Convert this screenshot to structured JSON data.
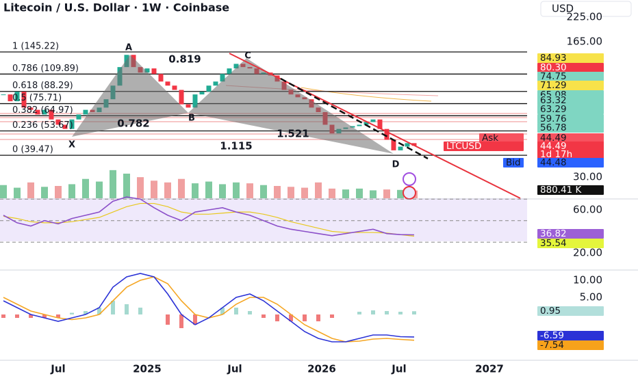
{
  "header": {
    "title": "Litecoin / U.S. Dollar · 1W · Coinbase",
    "currency": "USD"
  },
  "price_pane": {
    "scale": "log",
    "yticks": [
      {
        "value": 225,
        "label": "225.00"
      },
      {
        "value": 165,
        "label": "165.00"
      },
      {
        "value": 30,
        "label": "30.00"
      }
    ],
    "closes": [
      85,
      78,
      88,
      72,
      70,
      66,
      70,
      62,
      58,
      55,
      62,
      66,
      70,
      68,
      72,
      80,
      95,
      120,
      140,
      120,
      112,
      118,
      110,
      100,
      95,
      90,
      75,
      72,
      85,
      88,
      95,
      100,
      110,
      118,
      125,
      120,
      118,
      110,
      112,
      108,
      100,
      90,
      85,
      82,
      80,
      72,
      68,
      58,
      52,
      55,
      56,
      57,
      58,
      60,
      62,
      55,
      48,
      42,
      44,
      46,
      44.49
    ],
    "fib_levels": [
      {
        "label": "1 (145.22)",
        "value": 145.22
      },
      {
        "label": "0.786 (109.89)",
        "value": 109.89
      },
      {
        "label": "0.618 (88.29)",
        "value": 88.29
      },
      {
        "label": "0.5 (75.71)",
        "value": 75.71
      },
      {
        "label": "0.382 (64.97)",
        "value": 64.97
      },
      {
        "label": "0.236 (53.67)",
        "value": 53.67
      },
      {
        "label": "0 (39.47)",
        "value": 39.47
      }
    ],
    "pattern": {
      "points": [
        "X",
        "A",
        "B",
        "C",
        "D"
      ],
      "ratios": [
        0.819,
        0.782,
        1.521,
        1.115
      ]
    },
    "tags": [
      {
        "value": 84.93,
        "color": "#f7e24a"
      },
      {
        "value": 80.3,
        "label": "80.30",
        "color": "#f23645"
      },
      {
        "value": 74.75,
        "color": "#7fd6c2"
      },
      {
        "value": 71.29,
        "color": "#f7e24a"
      },
      {
        "value": 65.08,
        "color": "#7fd6c2"
      },
      {
        "value": 63.32,
        "color": "#7fd6c2"
      },
      {
        "value": 63.29,
        "color": "#7fd6c2"
      },
      {
        "value": 59.76,
        "color": "#7fd6c2"
      },
      {
        "value": 56.78,
        "color": "#7fd6c2"
      }
    ],
    "quote": {
      "ask_label": "Ask",
      "ask": 44.49,
      "symbol": "LTCUSD",
      "last": 44.49,
      "countdown": "1d 17h",
      "bid_label": "Bid",
      "bid": 44.48
    }
  },
  "volume_pane": {
    "values": [
      1500,
      1200,
      1800,
      1300,
      1400,
      1600,
      2200,
      1900,
      3200,
      2800,
      2400,
      2000,
      1800,
      2200,
      1700,
      1900,
      1600,
      1800,
      1700,
      1500,
      1400,
      1300,
      1200,
      1800,
      1100,
      1000,
      1100,
      900,
      1000,
      950,
      880.41
    ],
    "tag": {
      "value": 880.41,
      "label": "880.41 K"
    }
  },
  "rsi_pane": {
    "yticks": [
      {
        "value": 60,
        "label": "60.00"
      },
      {
        "value": 20,
        "label": "20.00"
      }
    ],
    "bands": [
      70,
      50,
      30
    ],
    "rsi": [
      55,
      48,
      45,
      50,
      47,
      52,
      55,
      58,
      68,
      72,
      70,
      62,
      55,
      50,
      58,
      60,
      62,
      58,
      55,
      50,
      45,
      42,
      40,
      38,
      36,
      38,
      40,
      42,
      38,
      37,
      36.82
    ],
    "rsi_ma": [
      54,
      52,
      49,
      48,
      48,
      49,
      51,
      53,
      58,
      63,
      66,
      66,
      63,
      58,
      56,
      56,
      57,
      58,
      58,
      56,
      53,
      49,
      46,
      43,
      40,
      39,
      39,
      39,
      38.5,
      37,
      35.54
    ],
    "tags": [
      {
        "value": 36.82,
        "color": "#9c5fd6"
      },
      {
        "value": 35.54,
        "color": "#e4f53c"
      }
    ]
  },
  "macd_pane": {
    "yticks": [
      {
        "value": 10,
        "label": "10.00"
      },
      {
        "value": 5,
        "label": "5.00"
      }
    ],
    "histogram": [
      -1,
      -1,
      -1,
      -1,
      -1,
      0.5,
      1,
      2,
      4,
      3,
      2,
      0,
      -3,
      -4,
      -3,
      0,
      2,
      2,
      1,
      -1,
      -2,
      -2,
      -2,
      -2,
      -1,
      0,
      0.8,
      1.2,
      1,
      0.8,
      0.95
    ],
    "macd": [
      4,
      2,
      0,
      -1,
      -2,
      -1,
      0,
      2,
      8,
      11,
      12,
      11,
      6,
      0,
      -3,
      -1,
      2,
      5,
      6,
      4,
      1,
      -2,
      -5,
      -7,
      -8,
      -8,
      -7,
      -6,
      -6,
      -6.5,
      -6.59
    ],
    "signal": [
      5,
      3,
      1,
      0,
      -1,
      -1.5,
      -1,
      0,
      4,
      8,
      10,
      11,
      9,
      4,
      0,
      -1,
      0,
      3,
      5,
      5,
      3,
      0,
      -3,
      -5,
      -7,
      -8,
      -7.8,
      -7.2,
      -7,
      -7.3,
      -7.54
    ],
    "tags": [
      {
        "value": 0.95,
        "color": "#b2dfdb"
      },
      {
        "value": -6.59,
        "color": "#2b32d6"
      },
      {
        "value": -7.54,
        "color": "#f7a21b"
      }
    ]
  },
  "x_axis": {
    "labels": [
      "Jul",
      "2025",
      "Jul",
      "2026",
      "Jul",
      "2027"
    ]
  }
}
